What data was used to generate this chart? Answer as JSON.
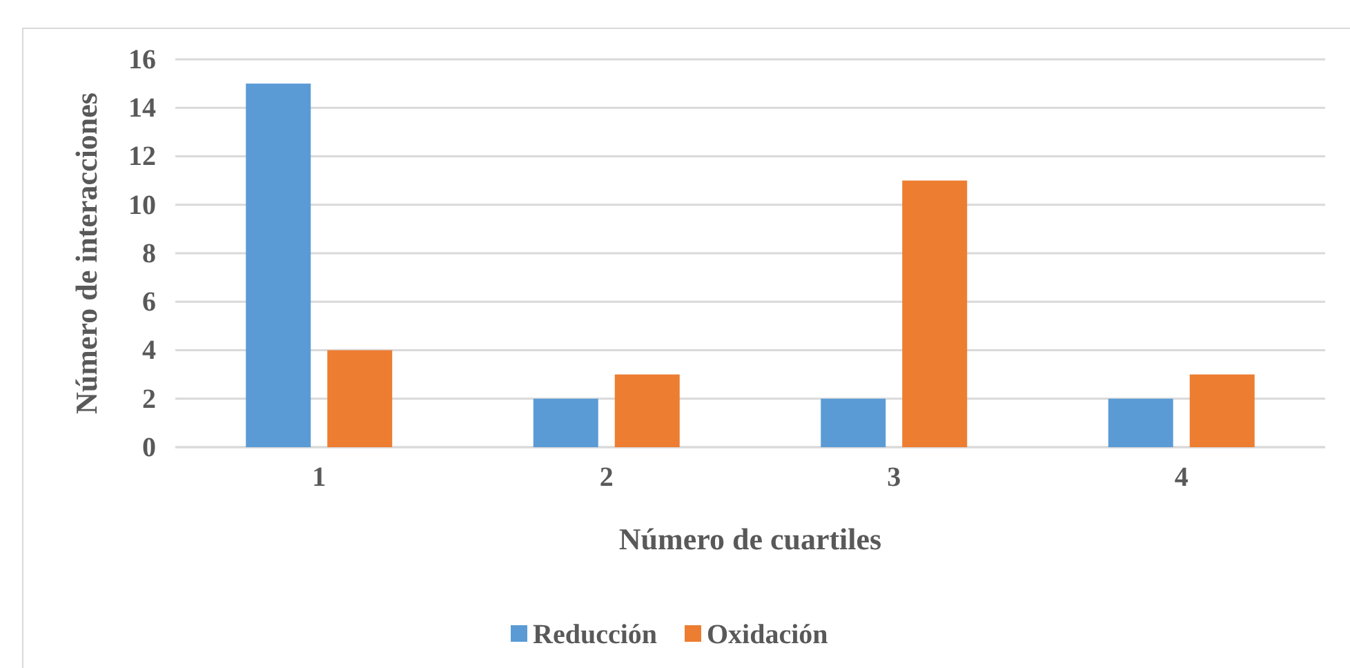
{
  "chart_data": {
    "type": "bar",
    "xlabel": "Número de cuartiles",
    "ylabel": "Número de interacciones",
    "categories": [
      "1",
      "2",
      "3",
      "4"
    ],
    "series": [
      {
        "name": "Reducción",
        "color": "#5b9bd5",
        "values": [
          15,
          2,
          2,
          2
        ]
      },
      {
        "name": "Oxidación",
        "color": "#ed7d31",
        "values": [
          4,
          3,
          11,
          3
        ]
      }
    ],
    "ylim": [
      0,
      16
    ],
    "yticks": [
      0,
      2,
      4,
      6,
      8,
      10,
      12,
      14,
      16
    ],
    "grid": "y",
    "legend": "bottom"
  }
}
